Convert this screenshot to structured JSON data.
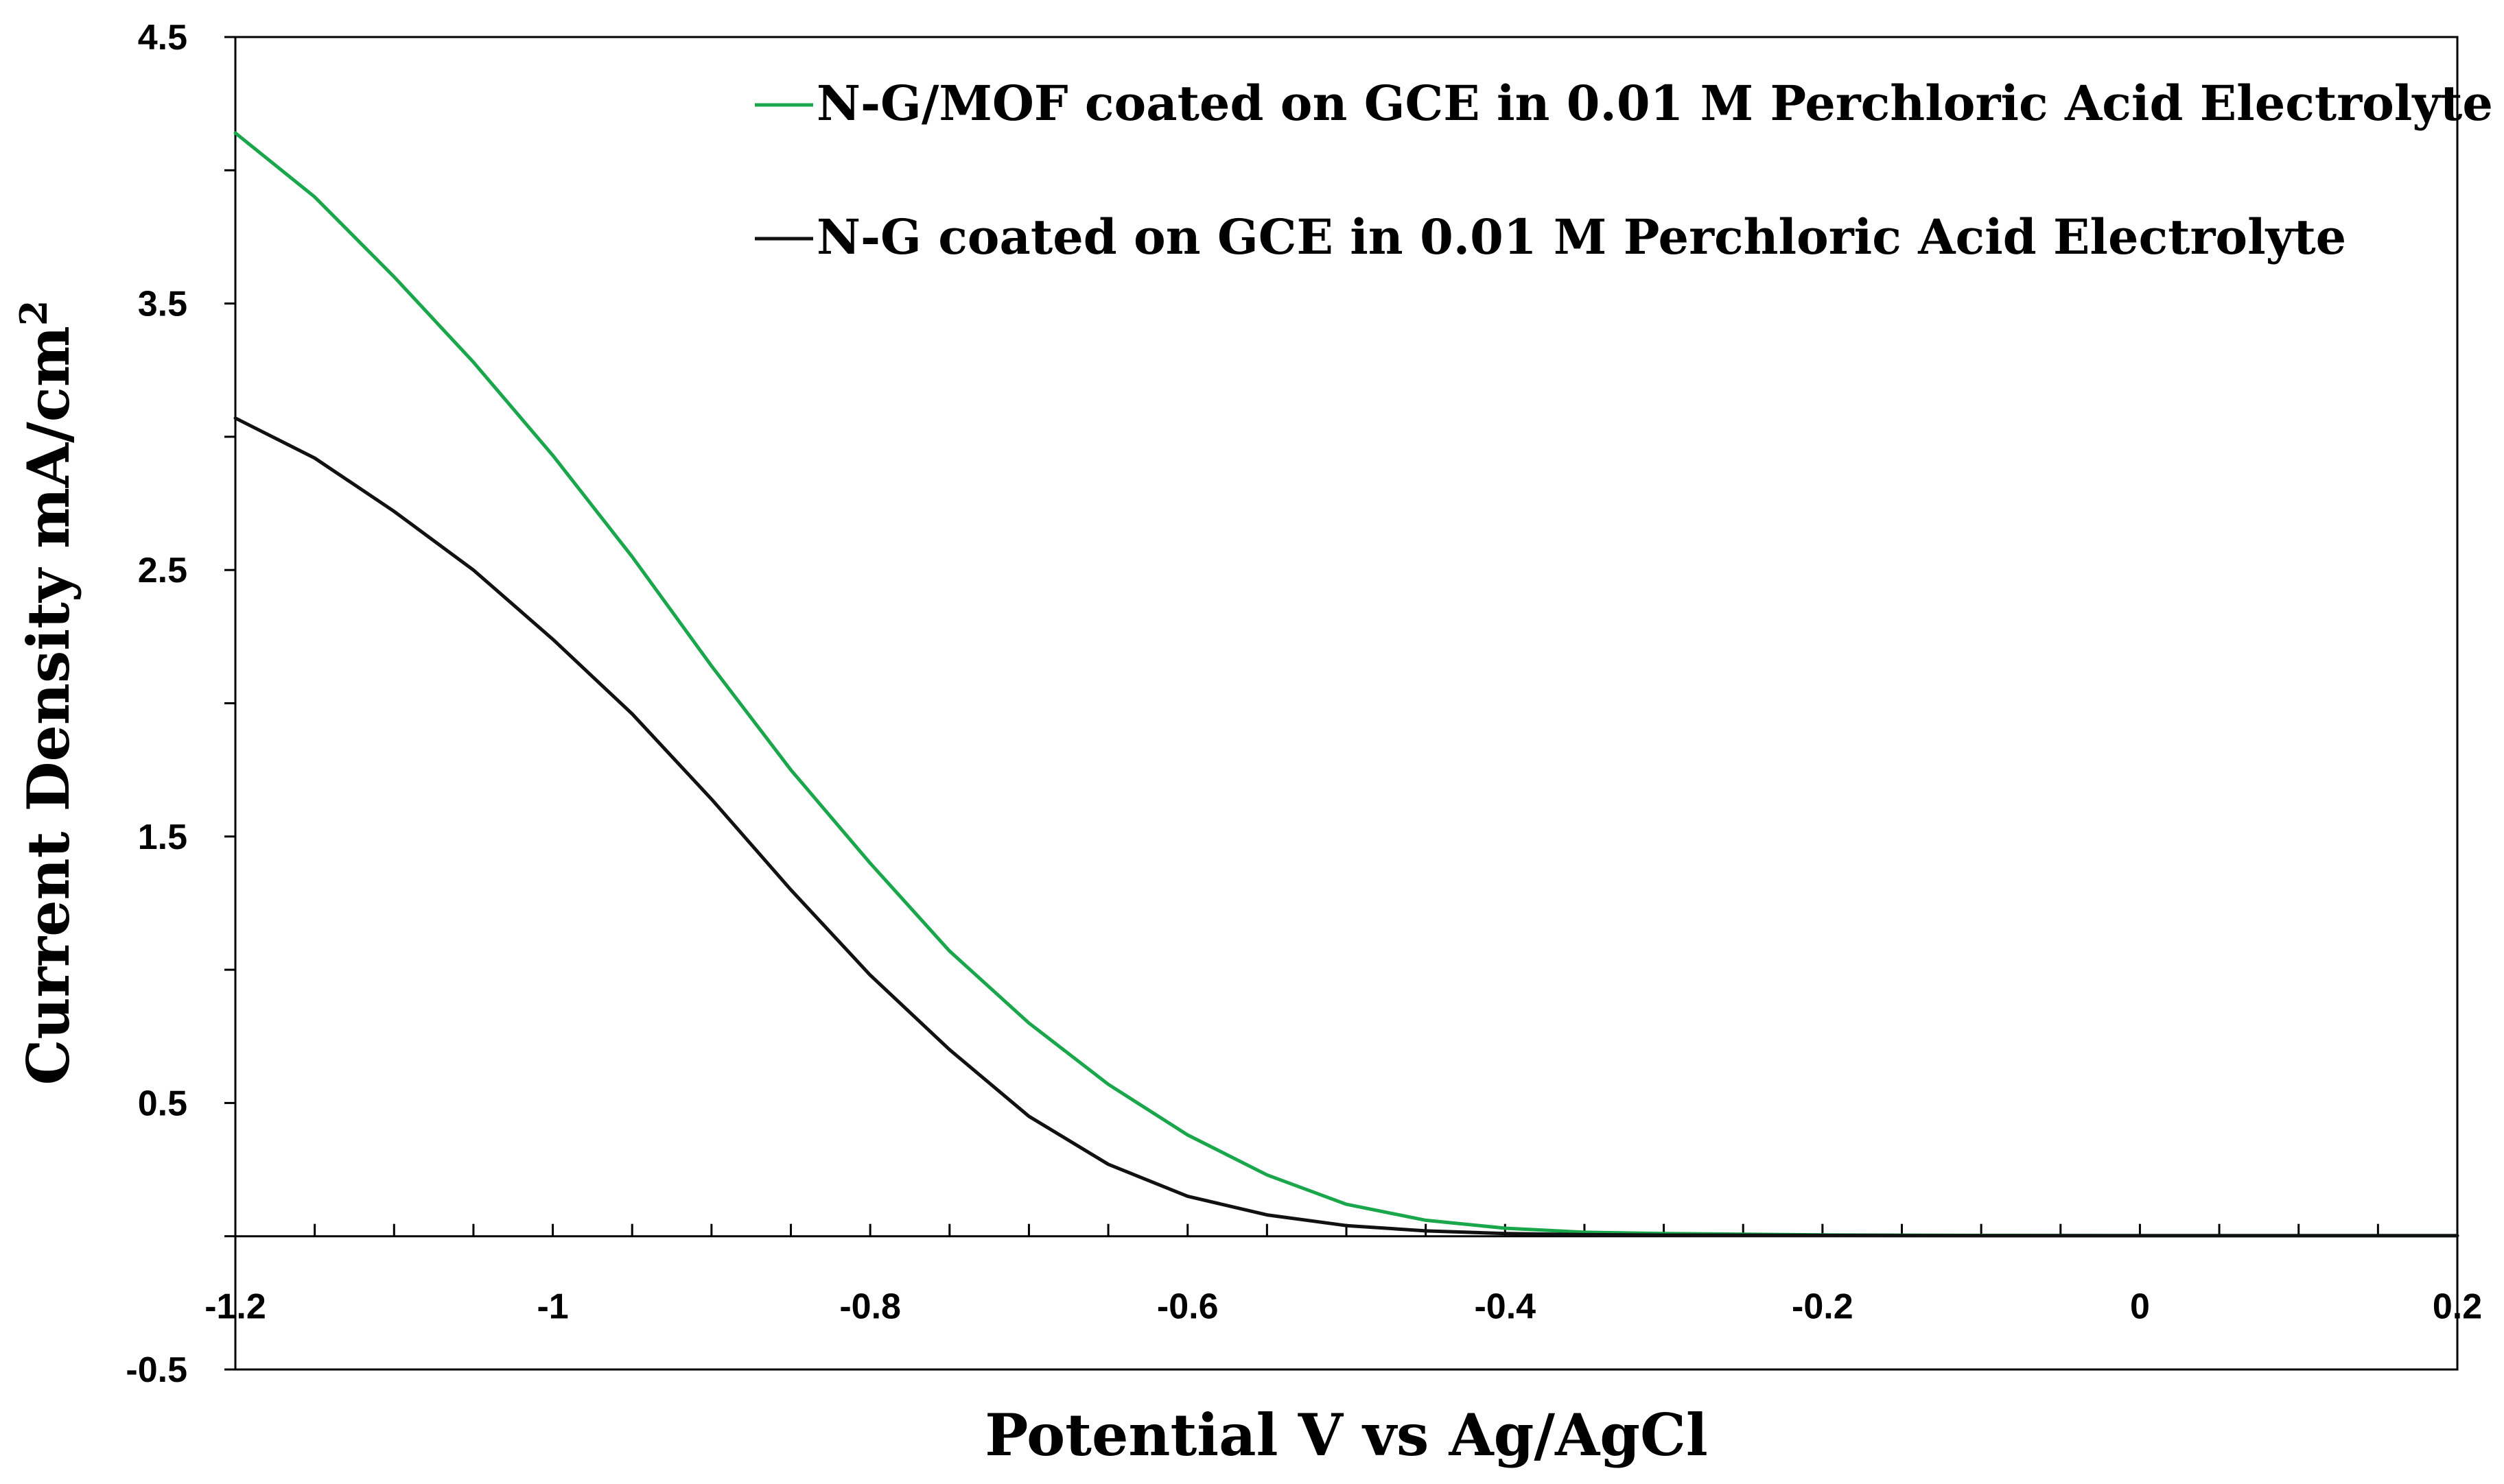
{
  "chart_data": {
    "type": "line",
    "title": "",
    "xlabel": "Potential V vs Ag/AgCl",
    "ylabel": "Current Density mA/cm",
    "ylabel_superscript": "2",
    "xlim": [
      -1.2,
      0.2
    ],
    "ylim": [
      -0.5,
      4.5
    ],
    "x_ticks": [
      "-1.2",
      "-1",
      "-0.8",
      "-0.6",
      "-0.4",
      "-0.2",
      "0",
      "0.2"
    ],
    "y_ticks": [
      "-0.5",
      "0.5",
      "1.5",
      "2.5",
      "3.5",
      "4.5"
    ],
    "legend_position": "top-right",
    "series": [
      {
        "name": "N-G/MOF coated on GCE in 0.01 M Perchloric Acid Electrolyte",
        "color": "#1aa64b",
        "x": [
          -1.2,
          -1.15,
          -1.1,
          -1.05,
          -1.0,
          -0.95,
          -0.9,
          -0.85,
          -0.8,
          -0.75,
          -0.7,
          -0.65,
          -0.6,
          -0.55,
          -0.5,
          -0.45,
          -0.4,
          -0.35,
          -0.3,
          -0.2,
          -0.1,
          0.0,
          0.1,
          0.2
        ],
        "values": [
          4.14,
          3.9,
          3.6,
          3.28,
          2.93,
          2.55,
          2.14,
          1.75,
          1.4,
          1.07,
          0.8,
          0.57,
          0.38,
          0.23,
          0.12,
          0.06,
          0.03,
          0.015,
          0.01,
          0.005,
          0.003,
          0.002,
          0.002,
          0.002
        ]
      },
      {
        "name": "N-G coated on GCE in 0.01 M Perchloric Acid Electrolyte",
        "color": "#111111",
        "x": [
          -1.2,
          -1.15,
          -1.1,
          -1.05,
          -1.0,
          -0.95,
          -0.9,
          -0.85,
          -0.8,
          -0.75,
          -0.7,
          -0.65,
          -0.6,
          -0.55,
          -0.5,
          -0.45,
          -0.4,
          -0.35,
          -0.3,
          -0.2,
          -0.1,
          0.0,
          0.1,
          0.2
        ],
        "values": [
          3.07,
          2.92,
          2.72,
          2.5,
          2.24,
          1.96,
          1.64,
          1.3,
          0.98,
          0.7,
          0.45,
          0.27,
          0.15,
          0.08,
          0.04,
          0.02,
          0.01,
          0.006,
          0.004,
          0.003,
          0.002,
          0.002,
          0.002,
          0.002
        ]
      }
    ]
  }
}
